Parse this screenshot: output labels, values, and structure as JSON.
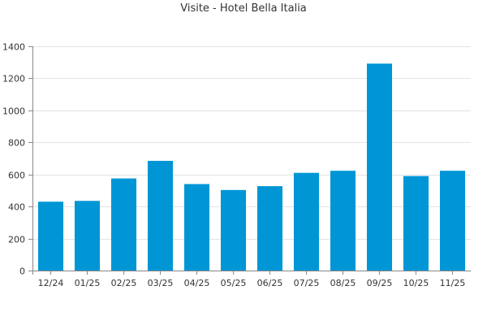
{
  "chart_data": {
    "type": "bar",
    "title": "Visite - Hotel Bella Italia",
    "xlabel": "",
    "ylabel": "",
    "categories": [
      "12/24",
      "01/25",
      "02/25",
      "03/25",
      "04/25",
      "05/25",
      "06/25",
      "07/25",
      "08/25",
      "09/25",
      "10/25",
      "11/25"
    ],
    "values": [
      430,
      435,
      575,
      685,
      540,
      503,
      527,
      610,
      623,
      1292,
      590,
      623
    ],
    "ylim": [
      0,
      1400
    ],
    "yticks": [
      0,
      200,
      400,
      600,
      800,
      1000,
      1200,
      1400
    ],
    "grid": true,
    "legend": "none",
    "bar_color": "#0096d6"
  }
}
